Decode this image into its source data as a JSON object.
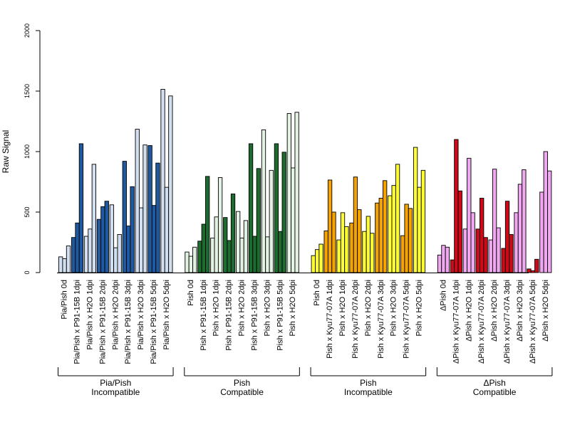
{
  "chart_data": {
    "type": "bar",
    "title": "",
    "xlabel": "",
    "ylabel": "Raw Signal",
    "ylim": [
      0,
      2000
    ],
    "yticks": [
      "0",
      "500",
      "1000",
      "1500",
      "2000"
    ],
    "bars_per_category": 3,
    "categories": [
      "Pia/Pish 0d",
      "Pia/Pish x P91-15B 1dpi",
      "Pia/Pish x H2O 1dpi",
      "Pia/Pish x P91-15B 2dpi",
      "Pia/Pish x H2O 2dpi",
      "Pia/Pish x P91-15B 3dpi",
      "Pia/Pish x H2O 3dpi",
      "Pia/Pish x P91-15B 5dpi",
      "Pia/Pish x H2O 5dpi",
      "Pish 0d",
      "Pish x P91-15B 1dpi",
      "Pish x H2O 1dpi",
      "Pish x P91-15B 2dpi",
      "Pish x H2O 2dpi",
      "Pish x P91-15B 3dpi",
      "Pish x H2O 3dpi",
      "Pish x P91-15B 5dpi",
      "Pish x H2O 5dpi",
      "Pish 0d",
      "Pish x Kyu77-07A 1dpi",
      "Pish x H2O 1dpi",
      "Pish x Kyu77-07A 2dpi",
      "Pish x H2O 2dpi",
      "Pish x Kyu77-07A 3dpi",
      "Pish x H2O 3dpi",
      "Pish x Kyu77-07A 5dpi",
      "Pish x H2O 5dpi",
      "ΔPish 0d",
      "ΔPish x Kyu77-07A 1dpi",
      "ΔPish x H2O 1dpi",
      "ΔPish x Kyu77-07A 2dpi",
      "ΔPish x H2O 2dpi",
      "ΔPish x Kyu77-07A 3dpi",
      "ΔPish x H2O 3dpi",
      "ΔPish x Kyu77-07A 5dpi",
      "ΔPish x H2O 5dpi"
    ],
    "values": [
      [
        130,
        115,
        220
      ],
      [
        290,
        410,
        1065
      ],
      [
        300,
        360,
        895
      ],
      [
        440,
        545,
        590
      ],
      [
        560,
        205,
        315
      ],
      [
        920,
        385,
        710
      ],
      [
        1185,
        535,
        1055
      ],
      [
        1050,
        555,
        905
      ],
      [
        1515,
        705,
        1460
      ],
      [
        170,
        135,
        210
      ],
      [
        260,
        400,
        795
      ],
      [
        285,
        460,
        785
      ],
      [
        455,
        265,
        650
      ],
      [
        505,
        285,
        430
      ],
      [
        1065,
        300,
        860
      ],
      [
        1180,
        295,
        845
      ],
      [
        1065,
        340,
        995
      ],
      [
        1315,
        865,
        1325
      ],
      [
        140,
        190,
        235
      ],
      [
        345,
        765,
        500
      ],
      [
        270,
        495,
        380
      ],
      [
        410,
        790,
        520
      ],
      [
        340,
        465,
        325
      ],
      [
        575,
        615,
        760
      ],
      [
        635,
        720,
        895
      ],
      [
        305,
        565,
        530
      ],
      [
        1035,
        705,
        845
      ],
      [
        145,
        225,
        210
      ],
      [
        105,
        1100,
        675
      ],
      [
        360,
        945,
        495
      ],
      [
        360,
        615,
        290
      ],
      [
        270,
        855,
        370
      ],
      [
        200,
        590,
        315
      ],
      [
        495,
        730,
        850
      ],
      [
        30,
        15,
        110
      ],
      [
        665,
        1000,
        840
      ]
    ],
    "groups": [
      {
        "line1": "Pia/Pish",
        "line2": "Incompatible",
        "count": 9,
        "colors": {
          "treated": "#1f5aa0",
          "mock": "#d2dff0"
        }
      },
      {
        "line1": "Pish",
        "line2": "Compatible",
        "count": 9,
        "colors": {
          "treated": "#1e6b30",
          "mock": "#e3f2e3"
        }
      },
      {
        "line1": "Pish",
        "line2": "Incompatible",
        "count": 9,
        "colors": {
          "treated": "#f5a300",
          "mock": "#ffff33"
        }
      },
      {
        "line1": "ΔPish",
        "line2": "Compatible",
        "count": 9,
        "colors": {
          "treated": "#cc0a18",
          "mock": "#f0a8f0"
        }
      }
    ]
  }
}
